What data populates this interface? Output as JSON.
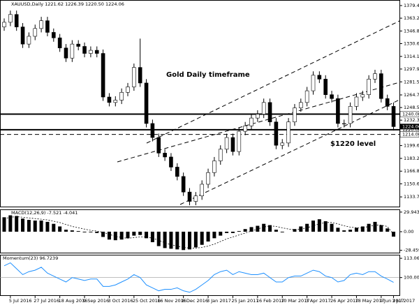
{
  "chart_data": [
    {
      "type": "candlestick",
      "title": "XAUUSD,Daily  1221.62 1226.39 1220.50 1224.06",
      "annotations": [
        "Gold Daily timeframe",
        "$1220 level"
      ],
      "categories": [
        null,
        "5 Jul 2016",
        null,
        null,
        null,
        "27 Jul 2016",
        null,
        null,
        null,
        "18 Aug 2016",
        null,
        null,
        null,
        "9 Sep 2016",
        null,
        null,
        null,
        "3 Oct 2016",
        null,
        null,
        null,
        "25 Oct 2016",
        null,
        null,
        null,
        "16 Nov 2016",
        null,
        null,
        null,
        "8 Dec 2016",
        null,
        null,
        null,
        "3 Jan 2017",
        null,
        null,
        null,
        "25 Jan 2017",
        null,
        null,
        null,
        "16 Feb 2017",
        null,
        null,
        null,
        "10 Mar 2017",
        null,
        null,
        null,
        "3 Apr 2017",
        null,
        null,
        null,
        "26 Apr 2017",
        null,
        null,
        null,
        "18 May 2017",
        null,
        null,
        null,
        "9 Jun 2017",
        null,
        "3 Jul 2017"
      ],
      "open": [
        1352,
        1358,
        1368,
        1352,
        1330,
        1340,
        1350,
        1360,
        1345,
        1338,
        1325,
        1312,
        1330,
        1327,
        1318,
        1322,
        1318,
        1262,
        1255,
        1258,
        1268,
        1275,
        1300,
        1280,
        1228,
        1210,
        1190,
        1185,
        1172,
        1160,
        1140,
        1128,
        1135,
        1150,
        1165,
        1180,
        1195,
        1210,
        1192,
        1218,
        1225,
        1235,
        1240,
        1255,
        1230,
        1200,
        1203,
        1230,
        1248,
        1255,
        1270,
        1290,
        1285,
        1265,
        1260,
        1228,
        1228,
        1250,
        1262,
        1265,
        1285,
        1292,
        1260,
        1250
      ],
      "high": [
        1363,
        1373,
        1373,
        1357,
        1345,
        1355,
        1365,
        1365,
        1350,
        1343,
        1330,
        1335,
        1335,
        1332,
        1327,
        1327,
        1323,
        1267,
        1263,
        1273,
        1280,
        1305,
        1337,
        1285,
        1233,
        1215,
        1195,
        1190,
        1177,
        1165,
        1145,
        1140,
        1155,
        1170,
        1185,
        1200,
        1215,
        1215,
        1223,
        1230,
        1240,
        1245,
        1260,
        1260,
        1235,
        1208,
        1235,
        1253,
        1260,
        1275,
        1295,
        1295,
        1290,
        1270,
        1265,
        1233,
        1255,
        1267,
        1270,
        1290,
        1297,
        1297,
        1265,
        1255
      ],
      "low": [
        1347,
        1353,
        1347,
        1325,
        1325,
        1335,
        1345,
        1340,
        1333,
        1320,
        1307,
        1307,
        1322,
        1313,
        1313,
        1313,
        1257,
        1250,
        1250,
        1253,
        1263,
        1270,
        1275,
        1223,
        1205,
        1185,
        1180,
        1167,
        1155,
        1135,
        1123,
        1123,
        1130,
        1145,
        1160,
        1175,
        1190,
        1187,
        1187,
        1213,
        1220,
        1230,
        1235,
        1225,
        1195,
        1195,
        1198,
        1225,
        1243,
        1250,
        1265,
        1280,
        1260,
        1255,
        1223,
        1223,
        1223,
        1245,
        1257,
        1260,
        1280,
        1255,
        1245,
        1219
      ],
      "close": [
        1358,
        1368,
        1352,
        1330,
        1340,
        1350,
        1360,
        1345,
        1338,
        1325,
        1312,
        1330,
        1327,
        1318,
        1322,
        1318,
        1262,
        1255,
        1258,
        1268,
        1275,
        1300,
        1280,
        1228,
        1210,
        1190,
        1185,
        1172,
        1160,
        1140,
        1128,
        1135,
        1150,
        1165,
        1180,
        1195,
        1210,
        1192,
        1218,
        1225,
        1235,
        1240,
        1255,
        1230,
        1200,
        1203,
        1230,
        1248,
        1255,
        1270,
        1290,
        1285,
        1265,
        1260,
        1228,
        1228,
        1250,
        1262,
        1265,
        1285,
        1292,
        1260,
        1250,
        1224
      ],
      "bull_color": "#ffffff",
      "bear_color": "#000000",
      "ylim": [
        1121.3,
        1385.7
      ],
      "yticks": [
        {
          "value": 1379.45,
          "label": "1379.45"
        },
        {
          "value": 1363.25,
          "label": "1363.25"
        },
        {
          "value": 1346.8,
          "label": "1346.80"
        },
        {
          "value": 1330.6,
          "label": "1330.60"
        },
        {
          "value": 1314.15,
          "label": "1314.15"
        },
        {
          "value": 1297.95,
          "label": "1297.95"
        },
        {
          "value": 1281.5,
          "label": "1281.50"
        },
        {
          "value": 1264.7,
          "label": "1264.70"
        },
        {
          "value": 1248.5,
          "label": "1248.50"
        },
        {
          "value": 1232.3,
          "label": "1232.30"
        },
        {
          "value": 1199.65,
          "label": "1199.65"
        },
        {
          "value": 1183.2,
          "label": "1183.20"
        },
        {
          "value": 1166.8,
          "label": "1166.80"
        },
        {
          "value": 1150.6,
          "label": "1150.60"
        },
        {
          "value": 1133.75,
          "label": "1133.75"
        }
      ],
      "levels": [
        {
          "value": 1240,
          "label": "1240.00",
          "style": "solid"
        },
        {
          "value": 1220,
          "label": "1220.00",
          "style": "solid"
        },
        {
          "value": 1214,
          "label": "1214.00",
          "style": "dashed"
        }
      ],
      "last": {
        "value": 1224.06,
        "label": "1224.06"
      }
    },
    {
      "type": "bar",
      "title": "MACD(12,26,9) -7.521 -4.041",
      "values": [
        22,
        25,
        24,
        20,
        18,
        17,
        17,
        15,
        12,
        8,
        3,
        2,
        1,
        -1,
        -1,
        -2,
        -8,
        -12,
        -13,
        -12,
        -10,
        -6,
        -5,
        -10,
        -16,
        -22,
        -25,
        -26,
        -27,
        -28,
        -27,
        -24,
        -20,
        -15,
        -10,
        -6,
        -2,
        -2,
        1,
        4,
        7,
        9,
        12,
        10,
        3,
        -1,
        0,
        4,
        8,
        12,
        17,
        19,
        16,
        12,
        6,
        2,
        3,
        6,
        8,
        12,
        15,
        10,
        5,
        -7.521
      ],
      "signal": [
        20,
        22,
        23,
        22,
        21,
        20,
        19,
        18,
        16,
        14,
        11,
        8,
        6,
        4,
        2,
        1,
        -1,
        -4,
        -7,
        -9,
        -10,
        -9,
        -8,
        -8,
        -10,
        -13,
        -17,
        -20,
        -22,
        -24,
        -25,
        -25,
        -24,
        -22,
        -19,
        -15,
        -11,
        -8,
        -5,
        -2,
        1,
        4,
        7,
        9,
        8,
        6,
        4,
        3,
        4,
        6,
        9,
        12,
        14,
        14,
        12,
        9,
        7,
        6,
        6,
        8,
        10,
        10,
        8,
        -4.041
      ],
      "color": "#000000",
      "ylim": [
        -32,
        33
      ],
      "yticks": [
        {
          "value": 29.943,
          "label": "29.943"
        },
        {
          "value": 0,
          "label": "0.00"
        },
        {
          "value": -28.459,
          "label": "-28.459"
        }
      ]
    },
    {
      "type": "line",
      "title": "Momentum(23) 96.7239",
      "values": [
        108,
        110,
        106,
        102,
        104,
        105,
        107,
        103,
        101,
        99,
        97,
        100,
        99,
        98,
        99,
        99,
        94,
        94,
        95,
        97,
        99,
        102,
        100,
        95,
        93,
        91,
        92,
        92,
        93,
        91,
        90,
        92,
        95,
        98,
        102,
        104,
        105,
        102,
        104,
        103,
        102,
        102,
        103,
        100,
        97,
        97,
        100,
        101,
        101,
        103,
        105,
        104,
        101,
        100,
        97,
        98,
        102,
        103,
        102,
        104,
        104,
        101,
        99,
        96.7239
      ],
      "color": "#1e90ff",
      "ylim": [
        88,
        115
      ],
      "yticks": [
        {
          "value": 113.0637,
          "label": "113.0637"
        },
        {
          "value": 100,
          "label": "100.00"
        }
      ]
    }
  ]
}
